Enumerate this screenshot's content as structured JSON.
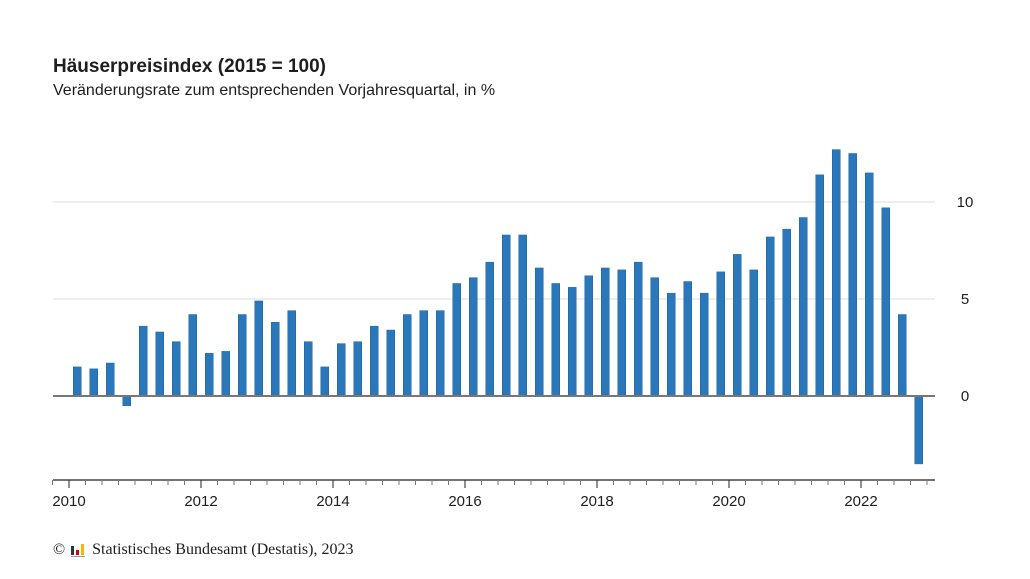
{
  "header": {
    "title": "Häuserpreisindex (2015 = 100)",
    "subtitle": "Veränderungsrate zum entsprechenden Vorjahresquartal, in %"
  },
  "footer": {
    "copyright_symbol": "©",
    "source": "Statistisches Bundesamt (Destatis), 2023"
  },
  "colors": {
    "bar": "#2a77b9",
    "zero_line": "#777777",
    "grid": "#dddddd",
    "axis": "#222222"
  },
  "chart_data": {
    "type": "bar",
    "title": "Häuserpreisindex (2015 = 100)",
    "subtitle": "Veränderungsrate zum entsprechenden Vorjahresquartal, in %",
    "xlabel": "",
    "ylabel": "",
    "x_start_year": 2010,
    "periods_per_year": 4,
    "x_range_years": [
      2009.75,
      2023.25
    ],
    "ylim": [
      -4.3,
      13.5
    ],
    "yticks": [
      0,
      5,
      10
    ],
    "ytick_labels": [
      "0",
      "5",
      "10"
    ],
    "y_axis_side": "right",
    "xtick_labels": [
      "2010",
      "2012",
      "2014",
      "2016",
      "2018",
      "2020",
      "2022"
    ],
    "xtick_years": [
      2010,
      2012,
      2014,
      2016,
      2018,
      2020,
      2022
    ],
    "grid": true,
    "legend": "none",
    "categories": [
      "2010 Q1",
      "2010 Q2",
      "2010 Q3",
      "2010 Q4",
      "2011 Q1",
      "2011 Q2",
      "2011 Q3",
      "2011 Q4",
      "2012 Q1",
      "2012 Q2",
      "2012 Q3",
      "2012 Q4",
      "2013 Q1",
      "2013 Q2",
      "2013 Q3",
      "2013 Q4",
      "2014 Q1",
      "2014 Q2",
      "2014 Q3",
      "2014 Q4",
      "2015 Q1",
      "2015 Q2",
      "2015 Q3",
      "2015 Q4",
      "2016 Q1",
      "2016 Q2",
      "2016 Q3",
      "2016 Q4",
      "2017 Q1",
      "2017 Q2",
      "2017 Q3",
      "2017 Q4",
      "2018 Q1",
      "2018 Q2",
      "2018 Q3",
      "2018 Q4",
      "2019 Q1",
      "2019 Q2",
      "2019 Q3",
      "2019 Q4",
      "2020 Q1",
      "2020 Q2",
      "2020 Q3",
      "2020 Q4",
      "2021 Q1",
      "2021 Q2",
      "2021 Q3",
      "2021 Q4",
      "2022 Q1",
      "2022 Q2",
      "2022 Q3",
      "2022 Q4"
    ],
    "values": [
      1.5,
      1.4,
      1.7,
      -0.5,
      3.6,
      3.3,
      2.8,
      4.2,
      2.2,
      2.3,
      4.2,
      4.9,
      3.8,
      4.4,
      2.8,
      1.5,
      2.7,
      2.8,
      3.6,
      3.4,
      4.2,
      4.4,
      4.4,
      5.8,
      6.1,
      6.9,
      8.3,
      8.3,
      6.6,
      5.8,
      5.6,
      6.2,
      6.6,
      6.5,
      6.9,
      6.1,
      5.3,
      5.9,
      5.3,
      6.4,
      7.3,
      6.5,
      8.2,
      8.6,
      9.2,
      11.4,
      12.7,
      12.5,
      11.5,
      9.7,
      4.2,
      -3.5
    ]
  }
}
